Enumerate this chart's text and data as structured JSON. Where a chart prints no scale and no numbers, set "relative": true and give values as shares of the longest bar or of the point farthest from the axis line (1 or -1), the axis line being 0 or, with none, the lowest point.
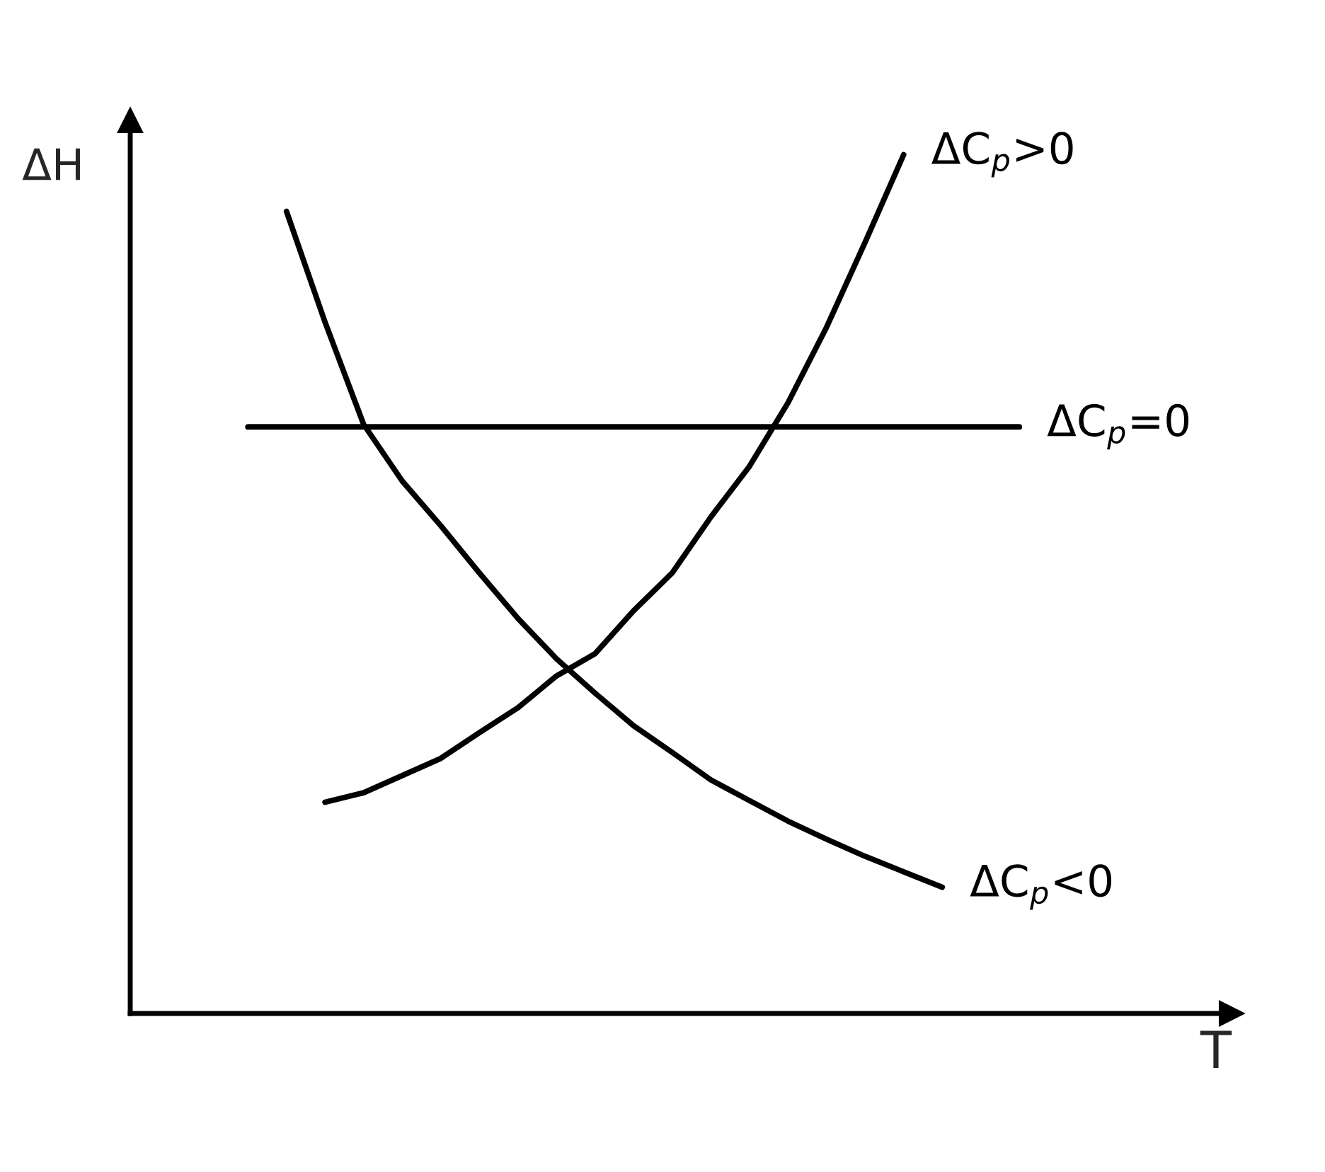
{
  "chart_data": {
    "type": "line",
    "relative": true,
    "xlabel": "T",
    "ylabel": "ΔH",
    "tick_labels": false,
    "legend": false,
    "marker": "none",
    "line_style": "solid",
    "categories": [
      null,
      null,
      null,
      null,
      null,
      null,
      null,
      null,
      null,
      null,
      null,
      null,
      null,
      null,
      null,
      null,
      null,
      null,
      null,
      null,
      null
    ],
    "series": [
      {
        "name": "ΔC$_{p}$>0",
        "color": "#000000",
        "values": [
          null,
          null,
          0.246,
          0.257,
          0.277,
          0.297,
          0.327,
          0.356,
          0.393,
          0.419,
          0.469,
          0.513,
          0.578,
          0.637,
          0.711,
          0.799,
          0.898,
          1.0,
          null,
          null,
          null
        ]
      },
      {
        "name": "ΔC$_{p}$=0",
        "color": "#000000",
        "values": [
          0.683,
          0.683,
          0.683,
          0.683,
          0.683,
          0.683,
          0.683,
          0.683,
          0.683,
          0.683,
          0.683,
          0.683,
          0.683,
          0.683,
          0.683,
          0.683,
          0.683,
          0.683,
          0.683,
          0.683,
          0.683
        ]
      },
      {
        "name": "ΔC$_{p}$<0",
        "color": "#000000",
        "values": [
          null,
          0.934,
          0.805,
          0.686,
          0.62,
          0.568,
          0.513,
          0.46,
          0.413,
          0.373,
          0.335,
          0.304,
          0.272,
          0.248,
          0.224,
          0.203,
          0.183,
          0.165,
          0.147,
          null,
          null
        ]
      }
    ]
  }
}
